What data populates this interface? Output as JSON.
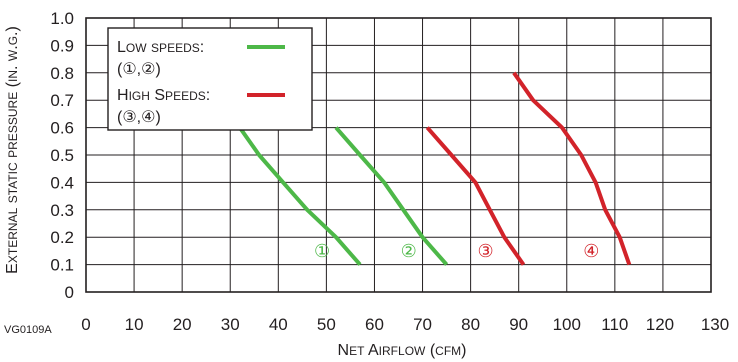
{
  "figure_id": "VG0109A",
  "chart_data": {
    "type": "line",
    "xlabel": "Net Airflow (CFM)",
    "ylabel": "External static pressure (in. w.g.)",
    "xlim": [
      0,
      130
    ],
    "ylim": [
      0,
      1.0
    ],
    "x_ticks": [
      "0",
      "10",
      "20",
      "30",
      "40",
      "50",
      "60",
      "70",
      "80",
      "90",
      "100",
      "110",
      "120",
      "130"
    ],
    "y_ticks": [
      "0",
      "0.1",
      "0.2",
      "0.3",
      "0.4",
      "0.5",
      "0.6",
      "0.7",
      "0.8",
      "0.9",
      "1.0"
    ],
    "grid": true,
    "legend": {
      "placement": "top-left",
      "entries": [
        {
          "label": "Low speeds:",
          "sublabel": "(①,②)",
          "color": "#4db848"
        },
        {
          "label": "High Speeds:",
          "sublabel": "(③,④)",
          "color": "#d2232a"
        }
      ]
    },
    "series": [
      {
        "label": "①",
        "group": "low",
        "color": "#4db848",
        "points": [
          [
            32,
            0.6
          ],
          [
            36,
            0.5
          ],
          [
            41,
            0.4
          ],
          [
            46,
            0.3
          ],
          [
            52,
            0.2
          ],
          [
            57,
            0.1
          ]
        ]
      },
      {
        "label": "②",
        "group": "low",
        "color": "#4db848",
        "points": [
          [
            52,
            0.6
          ],
          [
            57,
            0.5
          ],
          [
            62,
            0.4
          ],
          [
            66,
            0.3
          ],
          [
            70,
            0.2
          ],
          [
            75,
            0.1
          ]
        ]
      },
      {
        "label": "③",
        "group": "high",
        "color": "#d2232a",
        "points": [
          [
            71,
            0.6
          ],
          [
            76,
            0.5
          ],
          [
            81,
            0.4
          ],
          [
            84,
            0.3
          ],
          [
            87,
            0.2
          ],
          [
            91,
            0.1
          ]
        ]
      },
      {
        "label": "④",
        "group": "high",
        "color": "#d2232a",
        "points": [
          [
            89,
            0.8
          ],
          [
            93,
            0.7
          ],
          [
            99,
            0.6
          ],
          [
            103,
            0.5
          ],
          [
            106,
            0.4
          ],
          [
            108,
            0.3
          ],
          [
            111,
            0.2
          ],
          [
            113,
            0.1
          ]
        ]
      }
    ]
  }
}
